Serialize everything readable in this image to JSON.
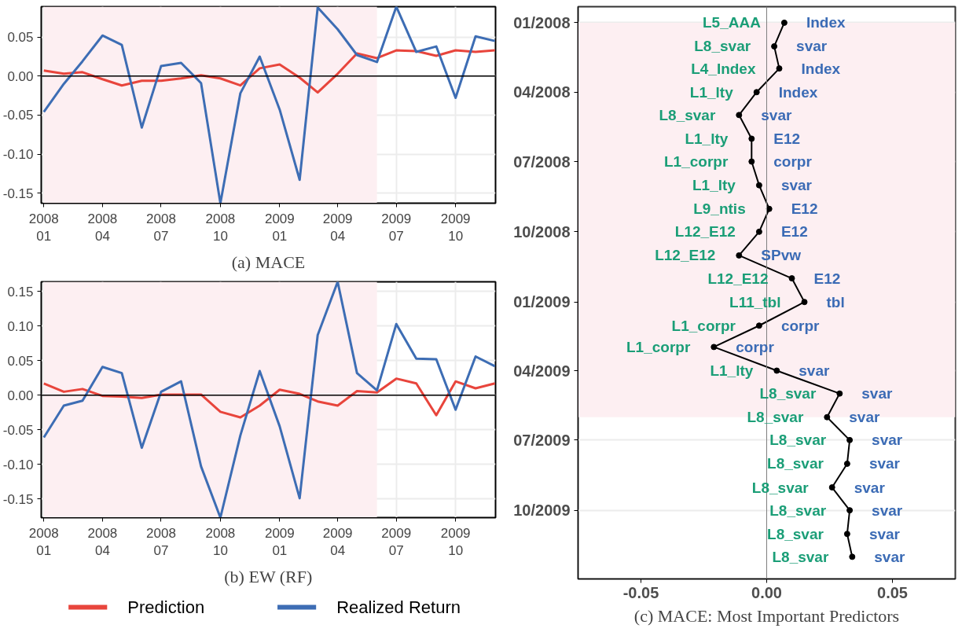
{
  "chart_data": [
    {
      "type": "line",
      "title": "(a) MACE",
      "x": [
        "2008-01",
        "2008-02",
        "2008-03",
        "2008-04",
        "2008-05",
        "2008-06",
        "2008-07",
        "2008-08",
        "2008-09",
        "2008-10",
        "2008-11",
        "2008-12",
        "2009-01",
        "2009-02",
        "2009-03",
        "2009-04",
        "2009-05",
        "2009-06",
        "2009-07",
        "2009-08",
        "2009-09",
        "2009-10",
        "2009-11",
        "2009-12"
      ],
      "series": [
        {
          "color": "#e8453c",
          "values": [
            0.007,
            0.003,
            0.005,
            -0.004,
            -0.012,
            -0.006,
            -0.006,
            -0.003,
            0.001,
            -0.003,
            -0.012,
            0.01,
            0.015,
            -0.002,
            -0.021,
            0.003,
            0.029,
            0.023,
            0.033,
            0.032,
            0.026,
            0.033,
            0.031,
            0.033
          ]
        },
        {
          "color": "#3d6db4",
          "values": [
            -0.046,
            -0.01,
            0.019,
            0.052,
            0.04,
            -0.066,
            0.013,
            0.017,
            -0.009,
            -0.163,
            -0.022,
            0.025,
            -0.043,
            -0.133,
            0.088,
            0.06,
            0.027,
            0.018,
            0.089,
            0.031,
            0.038,
            -0.028,
            0.051,
            0.045
          ]
        }
      ],
      "xlim": [
        "2007-12-28",
        "2009-12-02"
      ],
      "xticks": [
        {
          "value": "2008-01",
          "label": "2008\n01"
        },
        {
          "value": "2008-04",
          "label": "2008\n04"
        },
        {
          "value": "2008-07",
          "label": "2008\n07"
        },
        {
          "value": "2008-10",
          "label": "2008\n10"
        },
        {
          "value": "2009-01",
          "label": "2009\n01"
        },
        {
          "value": "2009-04",
          "label": "2009\n04"
        },
        {
          "value": "2009-07",
          "label": "2009\n07"
        },
        {
          "value": "2009-10",
          "label": "2009\n10"
        }
      ],
      "ylim": [
        -0.163,
        0.089
      ],
      "yticks": [
        {
          "value": -0.15,
          "label": "-0.15"
        },
        {
          "value": -0.1,
          "label": "-0.10"
        },
        {
          "value": -0.05,
          "label": "-0.05"
        },
        {
          "value": 0,
          "label": "0.00"
        },
        {
          "value": 0.05,
          "label": "0.05"
        }
      ],
      "grid": true,
      "ref_lines": [
        {
          "axis": "y",
          "value": 0,
          "color": "#000000"
        }
      ],
      "bands": [
        {
          "axis": "x",
          "from": "2008-01",
          "to": "2009-06",
          "color": "#fdeff2"
        }
      ]
    },
    {
      "type": "line",
      "title": "(b) EW (RF)",
      "x": [
        "2008-01",
        "2008-02",
        "2008-03",
        "2008-04",
        "2008-05",
        "2008-06",
        "2008-07",
        "2008-08",
        "2008-09",
        "2008-10",
        "2008-11",
        "2008-12",
        "2009-01",
        "2009-02",
        "2009-03",
        "2009-04",
        "2009-05",
        "2009-06",
        "2009-07",
        "2009-08",
        "2009-09",
        "2009-10",
        "2009-11",
        "2009-12"
      ],
      "series": [
        {
          "name": "Prediction",
          "color": "#e8453c",
          "values": [
            0.017,
            0.005,
            0.009,
            -0.001,
            -0.002,
            -0.004,
            0.001,
            0.001,
            0.001,
            -0.024,
            -0.032,
            -0.015,
            0.008,
            0.002,
            -0.009,
            -0.015,
            0.006,
            0.004,
            0.024,
            0.017,
            -0.029,
            0.02,
            0.01,
            0.017
          ]
        },
        {
          "name": "Realized Return",
          "color": "#3d6db4",
          "values": [
            -0.061,
            -0.015,
            -0.008,
            0.041,
            0.032,
            -0.076,
            0.005,
            0.02,
            -0.103,
            -0.177,
            -0.058,
            0.035,
            -0.045,
            -0.149,
            0.087,
            0.164,
            0.032,
            0.007,
            0.103,
            0.053,
            0.052,
            -0.021,
            0.056,
            0.042
          ]
        }
      ],
      "xlim": [
        "2007-12-28",
        "2009-12-02"
      ],
      "xticks": [
        {
          "value": "2008-01",
          "label": "2008\n01"
        },
        {
          "value": "2008-04",
          "label": "2008\n04"
        },
        {
          "value": "2008-07",
          "label": "2008\n07"
        },
        {
          "value": "2008-10",
          "label": "2008\n10"
        },
        {
          "value": "2009-01",
          "label": "2009\n01"
        },
        {
          "value": "2009-04",
          "label": "2009\n04"
        },
        {
          "value": "2009-07",
          "label": "2009\n07"
        },
        {
          "value": "2009-10",
          "label": "2009\n10"
        }
      ],
      "ylim": [
        -0.177,
        0.164
      ],
      "yticks": [
        {
          "value": -0.15,
          "label": "-0.15"
        },
        {
          "value": -0.1,
          "label": "-0.10"
        },
        {
          "value": -0.05,
          "label": "-0.05"
        },
        {
          "value": 0,
          "label": "0.00"
        },
        {
          "value": 0.05,
          "label": "0.05"
        },
        {
          "value": 0.1,
          "label": "0.10"
        },
        {
          "value": 0.15,
          "label": "0.15"
        }
      ],
      "grid": true,
      "legend": "bottom",
      "ref_lines": [
        {
          "axis": "y",
          "value": 0,
          "color": "#000000"
        }
      ],
      "bands": [
        {
          "axis": "x",
          "from": "2008-01",
          "to": "2009-06",
          "color": "#fdeff2"
        }
      ]
    },
    {
      "type": "line",
      "title": "(c) MACE: Most Important Predictors",
      "orientation": "horizontal",
      "marker": "circle",
      "x": [
        "2008-01",
        "2008-02",
        "2008-03",
        "2008-04",
        "2008-05",
        "2008-06",
        "2008-07",
        "2008-08",
        "2008-09",
        "2008-10",
        "2008-11",
        "2008-12",
        "2009-01",
        "2009-02",
        "2009-03",
        "2009-04",
        "2009-05",
        "2009-06",
        "2009-07",
        "2009-08",
        "2009-09",
        "2009-10",
        "2009-11",
        "2009-12"
      ],
      "series": [
        {
          "color": "#000000",
          "values": [
            0.007,
            0.003,
            0.005,
            -0.004,
            -0.011,
            -0.006,
            -0.006,
            -0.003,
            0.001,
            -0.003,
            -0.011,
            0.01,
            0.015,
            -0.003,
            -0.021,
            0.004,
            0.029,
            0.024,
            0.033,
            0.032,
            0.026,
            0.033,
            0.032,
            0.034
          ]
        }
      ],
      "xlim": [
        -0.075,
        0.075
      ],
      "xticks": [
        {
          "value": -0.05,
          "label": "-0.05"
        },
        {
          "value": 0,
          "label": "0.00"
        },
        {
          "value": 0.05,
          "label": "0.05"
        }
      ],
      "ylim": [
        "2009-12-30",
        "2007-12-11"
      ],
      "yticks": [
        {
          "value": "2008-01",
          "label": "01/2008"
        },
        {
          "value": "2008-04",
          "label": "04/2008"
        },
        {
          "value": "2008-07",
          "label": "07/2008"
        },
        {
          "value": "2008-10",
          "label": "10/2008"
        },
        {
          "value": "2009-01",
          "label": "01/2009"
        },
        {
          "value": "2009-04",
          "label": "04/2009"
        },
        {
          "value": "2009-07",
          "label": "07/2009"
        },
        {
          "value": "2009-10",
          "label": "10/2009"
        }
      ],
      "grid": "y",
      "ref_lines": [
        {
          "axis": "x",
          "value": 0,
          "color": "#7f7f7f"
        }
      ],
      "bands": [
        {
          "axis": "y",
          "from": "2008-01",
          "to": "2009-06",
          "color": "#fdeff2"
        }
      ],
      "annotations": [
        {
          "text": "L5_AAA",
          "x": 0.007,
          "y": "2008-01"
        },
        {
          "text": "Index",
          "x": 0.007,
          "y": "2008-01"
        },
        {
          "text": "L8_svar",
          "x": 0.003,
          "y": "2008-02"
        },
        {
          "text": "svar",
          "x": 0.003,
          "y": "2008-02"
        },
        {
          "text": "L4_Index",
          "x": 0.005,
          "y": "2008-03"
        },
        {
          "text": "Index",
          "x": 0.005,
          "y": "2008-03"
        },
        {
          "text": "L1_lty",
          "x": -0.004,
          "y": "2008-04"
        },
        {
          "text": "Index",
          "x": -0.004,
          "y": "2008-04"
        },
        {
          "text": "L8_svar",
          "x": -0.011,
          "y": "2008-05"
        },
        {
          "text": "svar",
          "x": -0.011,
          "y": "2008-05"
        },
        {
          "text": "L1_lty",
          "x": -0.006,
          "y": "2008-06"
        },
        {
          "text": "E12",
          "x": -0.006,
          "y": "2008-06"
        },
        {
          "text": "L1_corpr",
          "x": -0.006,
          "y": "2008-07"
        },
        {
          "text": "corpr",
          "x": -0.006,
          "y": "2008-07"
        },
        {
          "text": "L1_lty",
          "x": -0.003,
          "y": "2008-08"
        },
        {
          "text": "svar",
          "x": -0.003,
          "y": "2008-08"
        },
        {
          "text": "L9_ntis",
          "x": 0.001,
          "y": "2008-09"
        },
        {
          "text": "E12",
          "x": 0.001,
          "y": "2008-09"
        },
        {
          "text": "L12_E12",
          "x": -0.003,
          "y": "2008-10"
        },
        {
          "text": "E12",
          "x": -0.003,
          "y": "2008-10"
        },
        {
          "text": "L12_E12",
          "x": -0.011,
          "y": "2008-11"
        },
        {
          "text": "SPvw",
          "x": -0.011,
          "y": "2008-11"
        },
        {
          "text": "L12_E12",
          "x": 0.01,
          "y": "2008-12"
        },
        {
          "text": "E12",
          "x": 0.01,
          "y": "2008-12"
        },
        {
          "text": "L11_tbl",
          "x": 0.015,
          "y": "2009-01"
        },
        {
          "text": "tbl",
          "x": 0.015,
          "y": "2009-01"
        },
        {
          "text": "L1_corpr",
          "x": -0.003,
          "y": "2009-02"
        },
        {
          "text": "corpr",
          "x": -0.003,
          "y": "2009-02"
        },
        {
          "text": "L1_corpr",
          "x": -0.021,
          "y": "2009-03"
        },
        {
          "text": "corpr",
          "x": -0.021,
          "y": "2009-03"
        },
        {
          "text": "L1_lty",
          "x": 0.004,
          "y": "2009-04"
        },
        {
          "text": "svar",
          "x": 0.004,
          "y": "2009-04"
        },
        {
          "text": "L8_svar",
          "x": 0.029,
          "y": "2009-05"
        },
        {
          "text": "svar",
          "x": 0.029,
          "y": "2009-05"
        },
        {
          "text": "L8_svar",
          "x": 0.024,
          "y": "2009-06"
        },
        {
          "text": "svar",
          "x": 0.024,
          "y": "2009-06"
        },
        {
          "text": "L8_svar",
          "x": 0.033,
          "y": "2009-07"
        },
        {
          "text": "svar",
          "x": 0.033,
          "y": "2009-07"
        },
        {
          "text": "L8_svar",
          "x": 0.032,
          "y": "2009-08"
        },
        {
          "text": "svar",
          "x": 0.032,
          "y": "2009-08"
        },
        {
          "text": "L8_svar",
          "x": 0.026,
          "y": "2009-09"
        },
        {
          "text": "svar",
          "x": 0.026,
          "y": "2009-09"
        },
        {
          "text": "L8_svar",
          "x": 0.033,
          "y": "2009-10"
        },
        {
          "text": "svar",
          "x": 0.033,
          "y": "2009-10"
        },
        {
          "text": "L8_svar",
          "x": 0.032,
          "y": "2009-11"
        },
        {
          "text": "svar",
          "x": 0.032,
          "y": "2009-11"
        },
        {
          "text": "L8_svar",
          "x": 0.034,
          "y": "2009-12"
        },
        {
          "text": "svar",
          "x": 0.034,
          "y": "2009-12"
        }
      ]
    }
  ]
}
